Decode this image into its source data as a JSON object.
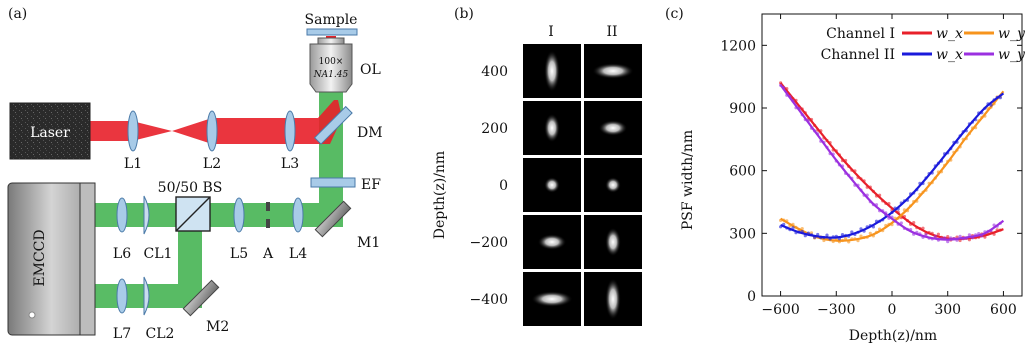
{
  "panel_a": {
    "label": "(a)",
    "sample": "Sample",
    "objective": "OL",
    "objective_mag": "100×",
    "objective_na": "NA1.45",
    "laser": "Laser",
    "dm": "DM",
    "ef": "EF",
    "bs": "50/50 BS",
    "camera": "EMCCD",
    "lenses": [
      "L1",
      "L2",
      "L3",
      "L4",
      "L5",
      "L6",
      "L7"
    ],
    "cyl_lenses": [
      "CL1",
      "CL2"
    ],
    "aperture": "A",
    "mirrors": [
      "M1",
      "M2"
    ],
    "colors": {
      "laser_beam": "#e8202a",
      "fluor_beam": "#3cb04a",
      "lens": "#a8cbe8"
    }
  },
  "panel_b": {
    "label": "(b)",
    "columns": [
      "I",
      "II"
    ],
    "ylabel": "Depth(z)/nm",
    "rows": [
      "400",
      "200",
      "0",
      "−200",
      "−400"
    ]
  },
  "chart_data": {
    "type": "line",
    "label": "(c)",
    "xlabel": "Depth(z)/nm",
    "ylabel": "PSF width/nm",
    "xlim": [
      -700,
      700
    ],
    "ylim": [
      0,
      1350
    ],
    "xticks": [
      -600,
      -300,
      0,
      300,
      600
    ],
    "xtick_labels": [
      "−600",
      "−300",
      "0",
      "300",
      "600"
    ],
    "yticks": [
      0,
      300,
      600,
      900,
      1200
    ],
    "ytick_labels": [
      "0",
      "300",
      "600",
      "900",
      "1200"
    ],
    "legend": {
      "rows": [
        {
          "channel": "Channel I",
          "entries": [
            {
              "name": "w_x",
              "color": "#e8202a"
            },
            {
              "name": "w_y",
              "color": "#f7941d"
            }
          ]
        },
        {
          "channel": "Channel II",
          "entries": [
            {
              "name": "w_x",
              "color": "#1a1adb"
            },
            {
              "name": "w_y",
              "color": "#9b30e0"
            }
          ]
        }
      ],
      "placement": "top"
    },
    "x": [
      -600,
      -500,
      -400,
      -300,
      -200,
      -100,
      0,
      100,
      200,
      300,
      400,
      500,
      600
    ],
    "series": [
      {
        "name": "Channel I w_x",
        "color": "#e8202a",
        "values": [
          1020,
          910,
          800,
          690,
          590,
          500,
          420,
          350,
          300,
          275,
          275,
          290,
          320
        ]
      },
      {
        "name": "Channel I w_y",
        "color": "#f7941d",
        "values": [
          370,
          320,
          280,
          265,
          270,
          295,
          350,
          430,
          530,
          640,
          760,
          870,
          980
        ]
      },
      {
        "name": "Channel II w_x",
        "color": "#1a1adb",
        "values": [
          340,
          305,
          285,
          280,
          300,
          340,
          400,
          480,
          580,
          690,
          800,
          900,
          970
        ]
      },
      {
        "name": "Channel II w_y",
        "color": "#9b30e0",
        "values": [
          1010,
          890,
          770,
          650,
          540,
          440,
          370,
          310,
          280,
          270,
          280,
          300,
          360
        ]
      }
    ]
  }
}
